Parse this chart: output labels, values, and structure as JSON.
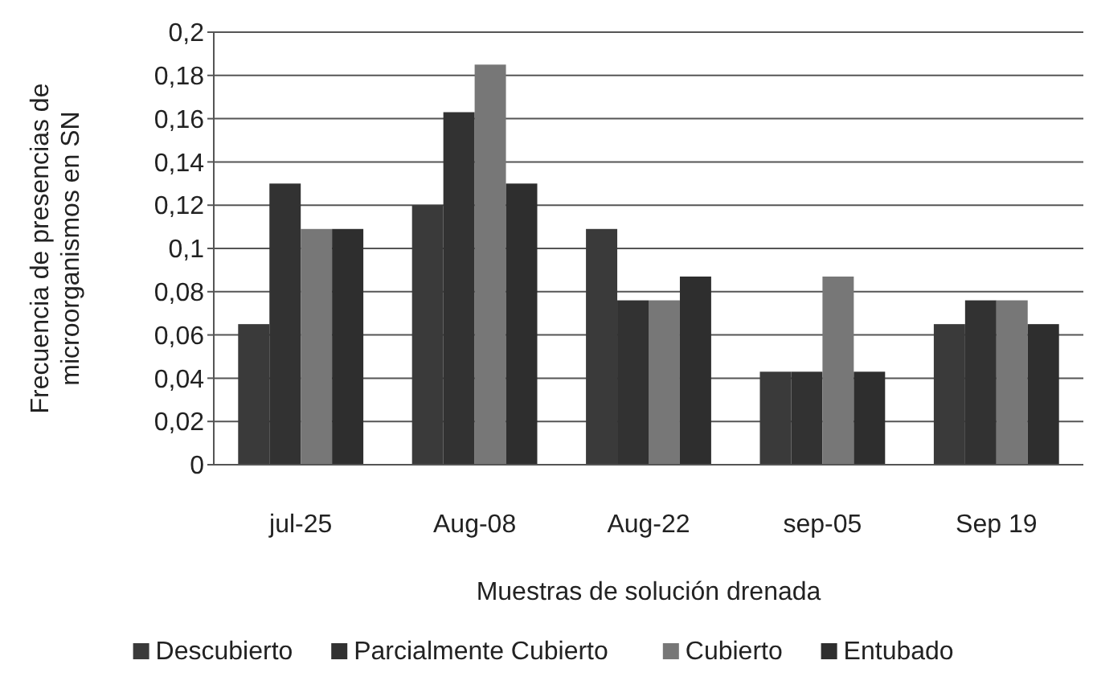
{
  "chart_data": {
    "type": "bar",
    "xlabel": "Muestras de solución drenada",
    "ylabel": "Frecuencia de presencias de microorganismos en SN",
    "categories": [
      "jul-25",
      "Aug-08",
      "Aug-22",
      "sep-05",
      "Sep 19"
    ],
    "series": [
      {
        "name": "Descubierto",
        "color": "#3a3a3a",
        "values": [
          0.065,
          0.12,
          0.109,
          0.043,
          0.065
        ]
      },
      {
        "name": "Parcialmente Cubierto",
        "color": "#323232",
        "values": [
          0.13,
          0.163,
          0.076,
          0.043,
          0.076
        ]
      },
      {
        "name": "Cubierto",
        "color": "#777777",
        "values": [
          0.109,
          0.185,
          0.076,
          0.087,
          0.076
        ]
      },
      {
        "name": "Entubado",
        "color": "#2e2e2e",
        "values": [
          0.109,
          0.13,
          0.087,
          0.043,
          0.065
        ]
      }
    ],
    "ylim": [
      0,
      0.2
    ],
    "yticks": [
      {
        "value": 0,
        "label": "0"
      },
      {
        "value": 0.02,
        "label": "0,02"
      },
      {
        "value": 0.04,
        "label": "0,04"
      },
      {
        "value": 0.06,
        "label": "0,06"
      },
      {
        "value": 0.08,
        "label": "0,08"
      },
      {
        "value": 0.1,
        "label": "0,1"
      },
      {
        "value": 0.12,
        "label": "0,12"
      },
      {
        "value": 0.14,
        "label": "0,14"
      },
      {
        "value": 0.16,
        "label": "0,16"
      },
      {
        "value": 0.18,
        "label": "0,18"
      },
      {
        "value": 0.2,
        "label": "0,2"
      }
    ],
    "grid": "y",
    "legend": "bottom"
  }
}
